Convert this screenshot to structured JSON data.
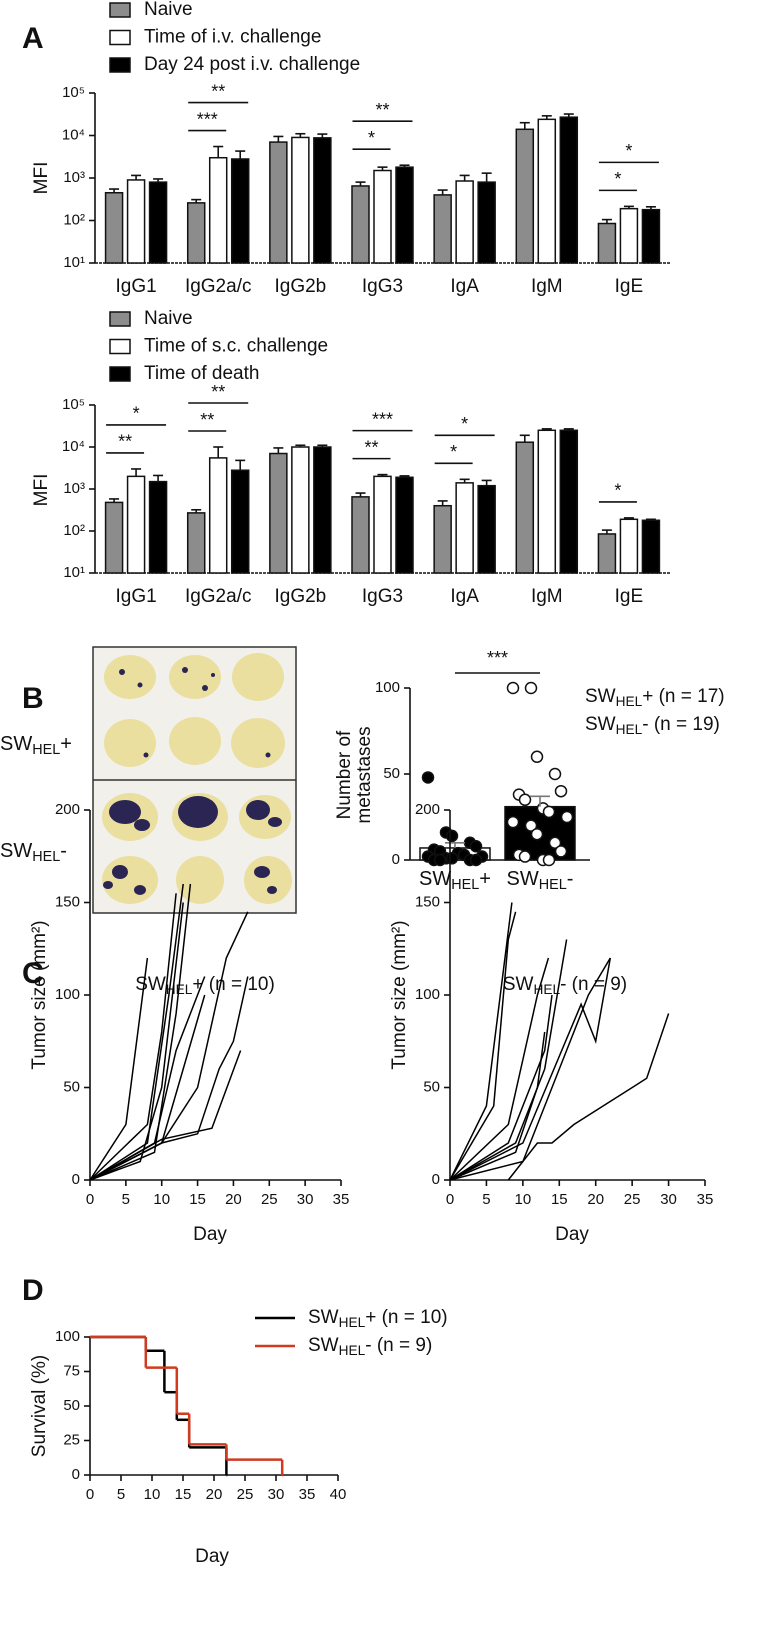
{
  "chart_data": [
    {
      "type": "bar",
      "panel": "A",
      "log_scale": true,
      "ylabel": "MFI",
      "ylim": [
        10,
        100000
      ],
      "yticks": [
        {
          "value": 10,
          "label": "10¹"
        },
        {
          "value": 100,
          "label": "10²"
        },
        {
          "value": 1000,
          "label": "10³"
        },
        {
          "value": 10000,
          "label": "10⁴"
        },
        {
          "value": 100000,
          "label": "10⁵"
        }
      ],
      "categories": [
        "IgG1",
        "IgG2a/c",
        "IgG2b",
        "IgG3",
        "IgA",
        "IgM",
        "IgE"
      ],
      "series": [
        {
          "name": "Naive",
          "color": "#8c8c8c",
          "values": [
            450,
            260,
            7000,
            650,
            400,
            14000,
            85
          ],
          "errors": [
            100,
            50,
            2500,
            150,
            120,
            6000,
            20
          ]
        },
        {
          "name": "Time of i.v. challenge",
          "color": "#ffffff",
          "values": [
            900,
            3000,
            9000,
            1500,
            850,
            24000,
            190
          ],
          "errors": [
            250,
            2500,
            2000,
            300,
            300,
            5000,
            25
          ]
        },
        {
          "name": "Day 24 post i.v. challenge",
          "color": "#000000",
          "values": [
            800,
            2800,
            8800,
            1800,
            800,
            27000,
            180
          ],
          "errors": [
            150,
            1500,
            2000,
            200,
            500,
            5000,
            30
          ]
        }
      ],
      "significance": [
        {
          "label": "***",
          "category": 1,
          "pair": [
            0,
            1
          ]
        },
        {
          "label": "**",
          "category": 1,
          "pair": [
            0,
            2
          ]
        },
        {
          "label": "*",
          "category": 3,
          "pair": [
            0,
            1
          ]
        },
        {
          "label": "**",
          "category": 3,
          "pair": [
            0,
            2
          ]
        },
        {
          "label": "*",
          "category": 6,
          "pair": [
            0,
            1
          ]
        },
        {
          "label": "*",
          "category": 6,
          "pair": [
            0,
            2
          ]
        }
      ]
    },
    {
      "type": "bar",
      "log_scale": true,
      "ylabel": "MFI",
      "ylim": [
        10,
        100000
      ],
      "yticks": [
        {
          "value": 10,
          "label": "10¹"
        },
        {
          "value": 100,
          "label": "10²"
        },
        {
          "value": 1000,
          "label": "10³"
        },
        {
          "value": 10000,
          "label": "10⁴"
        },
        {
          "value": 100000,
          "label": "10⁵"
        }
      ],
      "categories": [
        "IgG1",
        "IgG2a/c",
        "IgG2b",
        "IgG3",
        "IgA",
        "IgM",
        "IgE"
      ],
      "series": [
        {
          "name": "Naive",
          "color": "#8c8c8c",
          "values": [
            480,
            270,
            7000,
            650,
            400,
            13000,
            85
          ],
          "errors": [
            100,
            50,
            2500,
            150,
            120,
            6000,
            20
          ]
        },
        {
          "name": "Time of s.c. challenge",
          "color": "#ffffff",
          "values": [
            2000,
            5500,
            10000,
            2000,
            1400,
            25000,
            190
          ],
          "errors": [
            1000,
            4500,
            1000,
            200,
            300,
            2000,
            15
          ]
        },
        {
          "name": "Time of death",
          "color": "#000000",
          "values": [
            1500,
            2800,
            10000,
            1900,
            1200,
            25000,
            180
          ],
          "errors": [
            600,
            2000,
            1000,
            150,
            400,
            2000,
            10
          ]
        }
      ],
      "significance": [
        {
          "label": "**",
          "category": 0,
          "pair": [
            0,
            1
          ]
        },
        {
          "label": "*",
          "category": 0,
          "pair": [
            0,
            2
          ]
        },
        {
          "label": "**",
          "category": 1,
          "pair": [
            0,
            1
          ]
        },
        {
          "label": "**",
          "category": 1,
          "pair": [
            0,
            2
          ]
        },
        {
          "label": "**",
          "category": 3,
          "pair": [
            0,
            1
          ]
        },
        {
          "label": "***",
          "category": 3,
          "pair": [
            0,
            2
          ]
        },
        {
          "label": "*",
          "category": 4,
          "pair": [
            0,
            1
          ]
        },
        {
          "label": "*",
          "category": 4,
          "pair": [
            0,
            2
          ]
        },
        {
          "label": "*",
          "category": 6,
          "pair": [
            0,
            1
          ]
        }
      ]
    },
    {
      "type": "dotbar",
      "panel": "B",
      "image_labels": [
        [
          "SW",
          "HEL",
          "+"
        ],
        [
          "SW",
          "HEL",
          "-"
        ]
      ],
      "ylabel": [
        "Number of",
        "metastases"
      ],
      "ylim": [
        0,
        100
      ],
      "yticks": [
        0,
        50,
        100
      ],
      "categories": [
        [
          "SW",
          "HEL",
          "+"
        ],
        [
          "SW",
          "HEL",
          "-"
        ]
      ],
      "bar_colors": [
        "#ffffff",
        "#000000"
      ],
      "point_colors": [
        "#000000",
        "#ffffff"
      ],
      "values": [
        7,
        31
      ],
      "errors": [
        3,
        6
      ],
      "points": [
        [
          48,
          16,
          14,
          10,
          8,
          6,
          5,
          4,
          3,
          2,
          2,
          1,
          1,
          0,
          0,
          0,
          0
        ],
        [
          100,
          100,
          60,
          50,
          40,
          38,
          35,
          30,
          28,
          25,
          22,
          20,
          15,
          10,
          5,
          3,
          2,
          0,
          0
        ]
      ],
      "significance": [
        {
          "label": "***",
          "pair": [
            0,
            1
          ]
        }
      ],
      "legend": [
        [
          "SW",
          "HEL",
          "+ (n = 17)"
        ],
        [
          "SW",
          "HEL",
          "- (n = 19)"
        ]
      ]
    },
    {
      "type": "line",
      "panel": "C",
      "title": [
        "SW",
        "HEL",
        "+ (n = 10)"
      ],
      "ylabel": "Tumor size (mm²)",
      "xlabel": "Day",
      "xlim": [
        0,
        35
      ],
      "xticks": [
        0,
        5,
        10,
        15,
        20,
        25,
        30,
        35
      ],
      "ylim": [
        0,
        200
      ],
      "yticks": [
        0,
        50,
        100,
        150,
        200
      ],
      "series": [
        {
          "color": "#000000",
          "x": [
            0,
            5,
            8
          ],
          "values": [
            0,
            30,
            120
          ]
        },
        {
          "color": "#000000",
          "x": [
            0,
            8,
            10,
            12
          ],
          "values": [
            0,
            30,
            80,
            155
          ]
        },
        {
          "color": "#000000",
          "x": [
            0,
            8,
            11,
            13
          ],
          "values": [
            0,
            20,
            100,
            160
          ]
        },
        {
          "color": "#000000",
          "x": [
            0,
            9,
            12,
            14
          ],
          "values": [
            0,
            15,
            90,
            160
          ]
        },
        {
          "color": "#000000",
          "x": [
            0,
            9,
            12,
            16
          ],
          "values": [
            0,
            20,
            70,
            110
          ]
        },
        {
          "color": "#000000",
          "x": [
            0,
            10,
            13,
            16
          ],
          "values": [
            0,
            20,
            60,
            100
          ]
        },
        {
          "color": "#000000",
          "x": [
            0,
            10,
            15,
            19,
            22
          ],
          "values": [
            0,
            20,
            50,
            120,
            145
          ]
        },
        {
          "color": "#000000",
          "x": [
            0,
            10,
            15,
            18,
            20,
            22
          ],
          "values": [
            0,
            20,
            25,
            60,
            75,
            110
          ]
        },
        {
          "color": "#000000",
          "x": [
            0,
            10,
            17,
            21
          ],
          "values": [
            0,
            22,
            28,
            70
          ]
        },
        {
          "color": "#000000",
          "x": [
            0,
            7,
            10,
            13
          ],
          "values": [
            0,
            10,
            50,
            150
          ]
        }
      ]
    },
    {
      "type": "line",
      "title": [
        "SW",
        "HEL",
        "- (n = 9)"
      ],
      "ylabel": "Tumor size (mm²)",
      "xlabel": "Day",
      "xlim": [
        0,
        35
      ],
      "xticks": [
        0,
        5,
        10,
        15,
        20,
        25,
        30,
        35
      ],
      "ylim": [
        0,
        200
      ],
      "yticks": [
        0,
        50,
        100,
        150,
        200
      ],
      "series": [
        {
          "color": "#000000",
          "x": [
            0,
            5,
            8.5
          ],
          "values": [
            0,
            40,
            150
          ]
        },
        {
          "color": "#000000",
          "x": [
            0,
            6,
            8,
            9
          ],
          "values": [
            0,
            40,
            130,
            145
          ]
        },
        {
          "color": "#000000",
          "x": [
            0,
            8,
            12,
            13.5
          ],
          "values": [
            0,
            30,
            100,
            120
          ]
        },
        {
          "color": "#000000",
          "x": [
            0,
            8,
            13,
            14
          ],
          "values": [
            0,
            20,
            70,
            100
          ]
        },
        {
          "color": "#000000",
          "x": [
            0,
            9,
            13,
            16
          ],
          "values": [
            0,
            20,
            60,
            130
          ]
        },
        {
          "color": "#000000",
          "x": [
            0,
            9,
            12,
            13
          ],
          "values": [
            0,
            15,
            50,
            80
          ]
        },
        {
          "color": "#000000",
          "x": [
            0,
            10,
            15,
            19,
            22
          ],
          "values": [
            0,
            10,
            60,
            100,
            120
          ]
        },
        {
          "color": "#000000",
          "x": [
            0,
            10,
            18,
            20,
            22
          ],
          "values": [
            0,
            20,
            95,
            75,
            120
          ]
        },
        {
          "color": "#000000",
          "x": [
            8,
            12,
            14,
            17,
            27,
            30
          ],
          "values": [
            0,
            20,
            20,
            30,
            55,
            90
          ]
        }
      ]
    },
    {
      "type": "step",
      "panel": "D",
      "ylabel": "Survival (%)",
      "xlabel": "Day",
      "xlim": [
        0,
        40
      ],
      "xticks": [
        0,
        5,
        10,
        15,
        20,
        25,
        30,
        35,
        40
      ],
      "ylim": [
        0,
        100
      ],
      "yticks": [
        0,
        25,
        50,
        75,
        100
      ],
      "series": [
        {
          "name": [
            "SW",
            "HEL",
            "+ (n = 10)"
          ],
          "color": "#000000",
          "x": [
            0,
            9,
            12,
            14,
            16,
            22
          ],
          "values": [
            100,
            90,
            60,
            40,
            20,
            0
          ]
        },
        {
          "name": [
            "SW",
            "HEL",
            "- (n = 9)"
          ],
          "color": "#d03a1e",
          "x": [
            0,
            9,
            14,
            16,
            22,
            31
          ],
          "values": [
            100,
            77.8,
            44.4,
            22.2,
            11.1,
            0
          ]
        }
      ]
    }
  ]
}
